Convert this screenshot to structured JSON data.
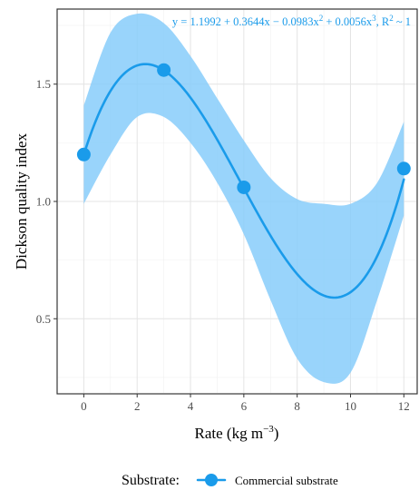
{
  "chart_data": {
    "type": "line",
    "title": "",
    "xlabel": "Rate (kg m",
    "xlabel_sup": "−3",
    "xlabel_suffix": ")",
    "ylabel": "Dickson quality index",
    "xlim": [
      -1,
      12.5
    ],
    "ylim": [
      0.18,
      1.82
    ],
    "x_ticks": [
      0,
      2,
      4,
      6,
      8,
      10,
      12
    ],
    "x_tick_labels": [
      "0",
      "2",
      "4",
      "6",
      "8",
      "10",
      "12"
    ],
    "y_ticks": [
      0.5,
      1.0,
      1.5
    ],
    "y_tick_labels": [
      "0.5",
      "1.0",
      "1.5"
    ],
    "grid": true,
    "series": [
      {
        "name": "Commercial substrate",
        "color": "#1a9bea",
        "band_color": "#87cdfa",
        "points": {
          "x": [
            0,
            3,
            6,
            12
          ],
          "y": [
            1.2,
            1.56,
            1.06,
            1.14
          ]
        },
        "fit": {
          "coefficients": [
            1.1992,
            0.3644,
            -0.0983,
            0.0056
          ],
          "x_range": [
            0,
            12
          ]
        },
        "confidence_band": {
          "x": [
            0,
            1,
            2,
            3,
            4,
            5,
            6,
            7,
            8,
            9,
            10,
            11,
            12
          ],
          "upper": [
            1.41,
            1.72,
            1.8,
            1.76,
            1.62,
            1.44,
            1.26,
            1.1,
            1.01,
            0.99,
            0.99,
            1.08,
            1.34
          ],
          "lower": [
            0.99,
            1.2,
            1.36,
            1.36,
            1.25,
            1.08,
            0.86,
            0.58,
            0.33,
            0.23,
            0.27,
            0.58,
            0.94
          ]
        }
      }
    ],
    "annotation": {
      "parts": [
        "y = 1.1992 + 0.3644x − 0.0983x",
        "2",
        " + 0.0056x",
        "3",
        ", R",
        "2",
        " ~ 1"
      ],
      "color": "#1a9bea",
      "placement": "top-right"
    },
    "legend": {
      "title": "Substrate:",
      "entries": [
        "Commercial substrate"
      ],
      "placement": "bottom"
    }
  }
}
